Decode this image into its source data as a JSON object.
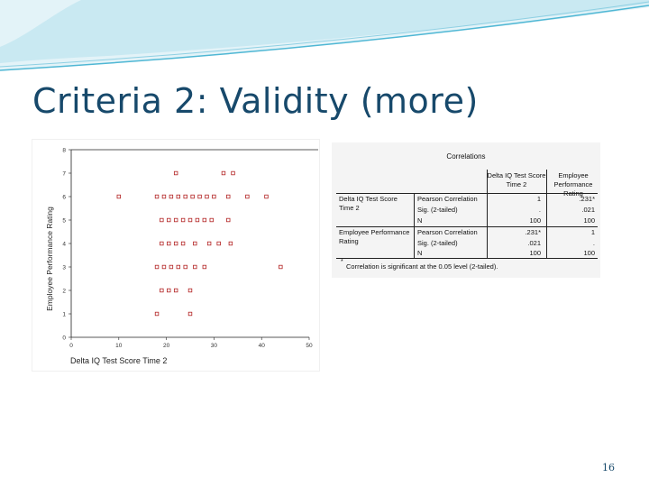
{
  "slide": {
    "title": "Criteria 2: Validity (more)",
    "page_number": "16",
    "colors": {
      "title": "#17496b",
      "band_light": "#e3f3f8",
      "band_mid": "#bde4ef",
      "band_line": "#4fb7d4",
      "marker": "#b22222"
    }
  },
  "scatter": {
    "ylabel": "Employee Performance Rating",
    "xlabel": "Delta IQ Test Score Time 2",
    "x_ticks": [
      "0",
      "10",
      "20",
      "30",
      "40",
      "50"
    ],
    "y_ticks": [
      "0",
      "1",
      "2",
      "3",
      "4",
      "5",
      "6",
      "7",
      "8"
    ]
  },
  "chart_data": {
    "type": "scatter",
    "xlabel": "Delta IQ Test Score Time 2",
    "ylabel": "Employee Performance Rating",
    "xlim": [
      0,
      50
    ],
    "ylim": [
      0,
      8
    ],
    "grid": false,
    "points": [
      {
        "x": 22,
        "y": 7
      },
      {
        "x": 32,
        "y": 7
      },
      {
        "x": 34,
        "y": 7
      },
      {
        "x": 10,
        "y": 6
      },
      {
        "x": 18,
        "y": 6
      },
      {
        "x": 19.5,
        "y": 6
      },
      {
        "x": 21,
        "y": 6
      },
      {
        "x": 22.5,
        "y": 6
      },
      {
        "x": 24,
        "y": 6
      },
      {
        "x": 25.5,
        "y": 6
      },
      {
        "x": 27,
        "y": 6
      },
      {
        "x": 28.5,
        "y": 6
      },
      {
        "x": 30,
        "y": 6
      },
      {
        "x": 33,
        "y": 6
      },
      {
        "x": 37,
        "y": 6
      },
      {
        "x": 41,
        "y": 6
      },
      {
        "x": 19,
        "y": 5
      },
      {
        "x": 20.5,
        "y": 5
      },
      {
        "x": 22,
        "y": 5
      },
      {
        "x": 23.5,
        "y": 5
      },
      {
        "x": 25,
        "y": 5
      },
      {
        "x": 26.5,
        "y": 5
      },
      {
        "x": 28,
        "y": 5
      },
      {
        "x": 29.5,
        "y": 5
      },
      {
        "x": 33,
        "y": 5
      },
      {
        "x": 19,
        "y": 4
      },
      {
        "x": 20.5,
        "y": 4
      },
      {
        "x": 22,
        "y": 4
      },
      {
        "x": 23.5,
        "y": 4
      },
      {
        "x": 26,
        "y": 4
      },
      {
        "x": 29,
        "y": 4
      },
      {
        "x": 31,
        "y": 4
      },
      {
        "x": 33.5,
        "y": 4
      },
      {
        "x": 18,
        "y": 3
      },
      {
        "x": 19.5,
        "y": 3
      },
      {
        "x": 21,
        "y": 3
      },
      {
        "x": 22.5,
        "y": 3
      },
      {
        "x": 24,
        "y": 3
      },
      {
        "x": 26,
        "y": 3
      },
      {
        "x": 28,
        "y": 3
      },
      {
        "x": 44,
        "y": 3
      },
      {
        "x": 19,
        "y": 2
      },
      {
        "x": 20.5,
        "y": 2
      },
      {
        "x": 22,
        "y": 2
      },
      {
        "x": 25,
        "y": 2
      },
      {
        "x": 18,
        "y": 1
      },
      {
        "x": 25,
        "y": 1
      }
    ]
  },
  "correlations": {
    "title": "Correlations",
    "col_headers": [
      "Delta IQ Test Score Time 2",
      "Employee Performance Rating"
    ],
    "rows": [
      {
        "variable": "Delta IQ Test Score Time 2",
        "stat": "Pearson Correlation",
        "v1": "1",
        "v2": ".231*"
      },
      {
        "variable": "",
        "stat": "Sig. (2-tailed)",
        "v1": ".",
        "v2": ".021"
      },
      {
        "variable": "",
        "stat": "N",
        "v1": "100",
        "v2": "100"
      },
      {
        "variable": "Employee Performance Rating",
        "stat": "Pearson Correlation",
        "v1": ".231*",
        "v2": "1"
      },
      {
        "variable": "",
        "stat": "Sig. (2-tailed)",
        "v1": ".021",
        "v2": "."
      },
      {
        "variable": "",
        "stat": "N",
        "v1": "100",
        "v2": "100"
      }
    ],
    "note_star": "*",
    "note": "Correlation is significant at the 0.05 level (2-tailed)."
  }
}
